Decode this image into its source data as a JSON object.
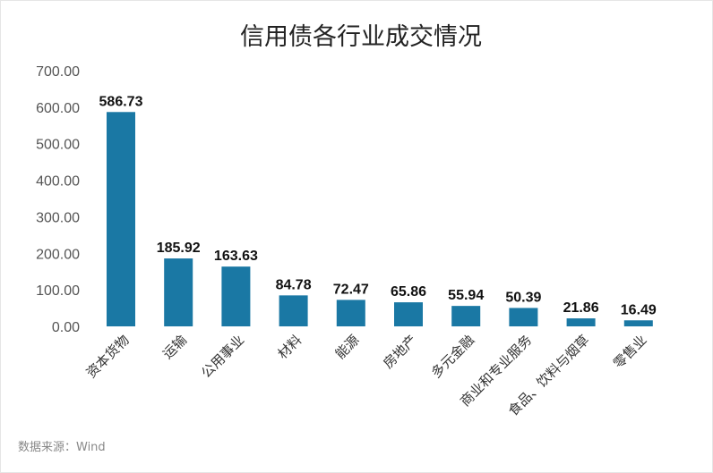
{
  "chart_data": {
    "type": "bar",
    "title": "信用债各行业成交情况",
    "categories": [
      "资本货物",
      "运输",
      "公用事业",
      "材料",
      "能源",
      "房地产",
      "多元金融",
      "商业和专业服务",
      "食品、饮料与烟草",
      "零售业"
    ],
    "values": [
      586.73,
      185.92,
      163.63,
      84.78,
      72.47,
      65.86,
      55.94,
      50.39,
      21.86,
      16.49
    ],
    "data_labels": [
      "586.73",
      "185.92",
      "163.63",
      "84.78",
      "72.47",
      "65.86",
      "55.94",
      "50.39",
      "21.86",
      "16.49"
    ],
    "yticks": [
      "0.00",
      "100.00",
      "200.00",
      "300.00",
      "400.00",
      "500.00",
      "600.00",
      "700.00"
    ],
    "ylim": [
      0,
      700
    ],
    "xlabel": "",
    "ylabel": "",
    "grid": false,
    "bar_color": "#1a78a4"
  },
  "source": "数据来源：Wind"
}
